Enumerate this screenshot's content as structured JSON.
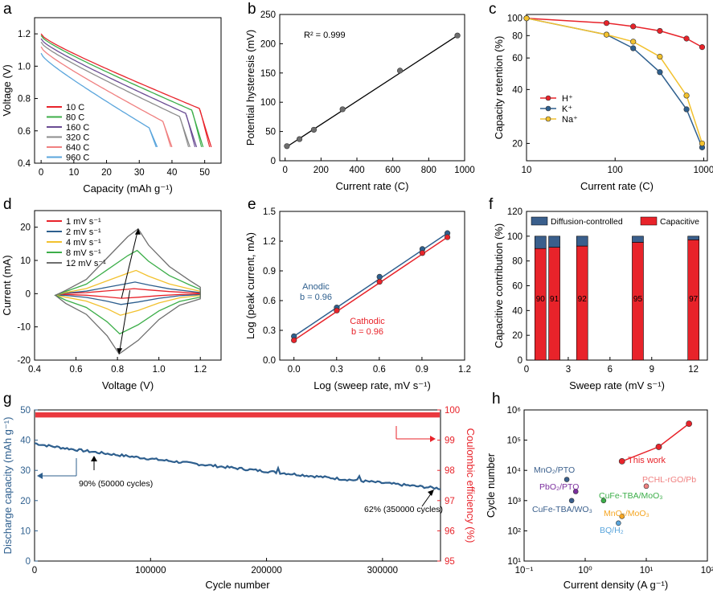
{
  "colors": {
    "red": "#e8232a",
    "blue": "#2e5f8e",
    "yellow": "#f2c12e",
    "green": "#3cae49",
    "purple": "#7b2f9e",
    "gray": "#6e6e6e",
    "lightblue": "#5aa5dc",
    "pink": "#e8646a",
    "orange": "#f5a623",
    "darkblue": "#3a5f8c",
    "lightpink": "#f08080"
  },
  "chart_data": [
    {
      "panel": "a",
      "type": "line",
      "xlabel": "Capacity (mAh g⁻¹)",
      "ylabel": "Voltage (V)",
      "xlim": [
        -2,
        55
      ],
      "ylim": [
        0.4,
        1.3
      ],
      "xticks": [
        0,
        10,
        20,
        30,
        40,
        50
      ],
      "yticks": [
        0.4,
        0.6,
        0.8,
        1.0,
        1.2
      ],
      "xtick_labels": [
        "0",
        "10",
        "20",
        "30",
        "40",
        "50"
      ],
      "ytick_labels": [
        "0.4",
        "0.6",
        "0.8",
        "1.0",
        "1.2"
      ],
      "series": [
        {
          "name": "10 C",
          "color": "#e8232a",
          "cap": 52,
          "top": 1.18
        },
        {
          "name": "80 C",
          "color": "#3cae49",
          "cap": 49.5,
          "top": 1.17
        },
        {
          "name": "160 C",
          "color": "#6a4c93",
          "cap": 47.5,
          "top": 1.15
        },
        {
          "name": "320 C",
          "color": "#8c8c8c",
          "cap": 45.5,
          "top": 1.13
        },
        {
          "name": "640 C",
          "color": "#f08080",
          "cap": 40,
          "top": 1.1
        },
        {
          "name": "960 C",
          "color": "#5aa5dc",
          "cap": 35.5,
          "top": 1.06
        }
      ]
    },
    {
      "panel": "b",
      "type": "scatter",
      "xlabel": "Current rate (C)",
      "ylabel": "Potential hysteresis (mV)",
      "annotation": "R² = 0.999",
      "xlim": [
        -30,
        1000
      ],
      "ylim": [
        0,
        250
      ],
      "xticks": [
        0,
        200,
        400,
        600,
        800,
        1000
      ],
      "yticks": [
        0,
        50,
        100,
        150,
        200,
        250
      ],
      "xtick_labels": [
        "0",
        "200",
        "400",
        "600",
        "800",
        "1000"
      ],
      "ytick_labels": [
        "0",
        "50",
        "100",
        "150",
        "200",
        "250"
      ],
      "x": [
        10,
        80,
        160,
        320,
        640,
        960
      ],
      "y": [
        25,
        37,
        53,
        88,
        154,
        214
      ]
    },
    {
      "panel": "c",
      "type": "line",
      "xlabel": "Current rate (C)",
      "ylabel": "Capacity retention (%)",
      "xscale": "log",
      "yscale": "log",
      "xlim": [
        10,
        1100
      ],
      "ylim": [
        16,
        105
      ],
      "xtick_labels": [
        "10",
        "100",
        "1000"
      ],
      "ytick_labels": [
        "20",
        "40",
        "60",
        "80",
        "100"
      ],
      "x": [
        10,
        80,
        160,
        320,
        640,
        960
      ],
      "series": [
        {
          "name": "H⁺",
          "color": "#e8232a",
          "values": [
            100,
            94,
            90,
            85,
            77,
            69
          ]
        },
        {
          "name": "K⁺",
          "color": "#2e5f8e",
          "values": [
            100,
            81,
            68,
            50,
            31,
            19
          ]
        },
        {
          "name": "Na⁺",
          "color": "#f2c12e",
          "values": [
            100,
            81,
            74,
            61,
            37,
            20
          ]
        }
      ]
    },
    {
      "panel": "d",
      "type": "line",
      "xlabel": "Voltage (V)",
      "ylabel": "Current (mA)",
      "xlim": [
        0.4,
        1.3
      ],
      "ylim": [
        -20,
        25
      ],
      "xtick_labels": [
        "0.4",
        "0.6",
        "0.8",
        "1.0",
        "1.2"
      ],
      "ytick_labels": [
        "-20",
        "-10",
        "0",
        "10",
        "20"
      ],
      "series": [
        {
          "name": "1 mV s⁻¹",
          "color": "#e8232a",
          "peak": 1.5
        },
        {
          "name": "2 mV s⁻¹",
          "color": "#2e5f8e",
          "peak": 3.5
        },
        {
          "name": "4 mV s⁻¹",
          "color": "#f2c12e",
          "peak": 7
        },
        {
          "name": "8 mV s⁻¹",
          "color": "#3cae49",
          "peak": 13
        },
        {
          "name": "12 mV s⁻¹",
          "color": "#6e6e6e",
          "peak": 19.5
        }
      ]
    },
    {
      "panel": "e",
      "type": "scatter",
      "xlabel": "Log (sweep rate, mV s⁻¹)",
      "ylabel": "Log (peak current, mA)",
      "xlim": [
        -0.1,
        1.2
      ],
      "ylim": [
        0.0,
        1.5
      ],
      "xtick_labels": [
        "0.0",
        "0.3",
        "0.6",
        "0.9",
        "1.2"
      ],
      "ytick_labels": [
        "0.0",
        "0.3",
        "0.6",
        "0.9",
        "1.2",
        "1.5"
      ],
      "x": [
        0,
        0.301,
        0.602,
        0.903,
        1.079
      ],
      "series": [
        {
          "name": "Anodic",
          "label": "Anodic",
          "b": "b = 0.96",
          "color": "#2e5f8e",
          "values": [
            0.24,
            0.53,
            0.84,
            1.12,
            1.28
          ]
        },
        {
          "name": "Cathodic",
          "label": "Cathodic",
          "b": "b = 0.96",
          "color": "#e8232a",
          "values": [
            0.2,
            0.5,
            0.79,
            1.08,
            1.24
          ]
        }
      ]
    },
    {
      "panel": "f",
      "type": "bar",
      "xlabel": "Sweep rate (mV s⁻¹)",
      "ylabel": "Capacitive contribution (%)",
      "xlim": [
        0,
        13
      ],
      "ylim": [
        0,
        120
      ],
      "xtick_labels": [
        "0",
        "3",
        "6",
        "9",
        "12"
      ],
      "ytick_labels": [
        "0",
        "20",
        "40",
        "60",
        "80",
        "100",
        "120"
      ],
      "categories": [
        1,
        2,
        4,
        8,
        12
      ],
      "capacitive": [
        90,
        91,
        92,
        95,
        97
      ],
      "value_labels": [
        "90",
        "91",
        "92",
        "95",
        "97"
      ],
      "legend": [
        "Diffusion-controlled",
        "Capacitive"
      ]
    },
    {
      "panel": "g",
      "type": "line",
      "xlabel": "Cycle number",
      "ylabel": "Discharge capacity (mAh g⁻¹)",
      "ylabel2": "Coulombic efficiency (%)",
      "xlim": [
        0,
        350000
      ],
      "ylim": [
        0,
        50
      ],
      "ylim2": [
        95,
        100
      ],
      "xtick_labels": [
        "0",
        "100000",
        "200000",
        "300000"
      ],
      "ytick_labels": [
        "0",
        "10",
        "20",
        "30",
        "40",
        "50"
      ],
      "ytick_labels2": [
        "95",
        "96",
        "97",
        "98",
        "99",
        "100"
      ],
      "capacity_start": 39,
      "capacity_end": 24,
      "annotations": [
        "90% (50000 cycles)",
        "62% (350000 cycles)"
      ]
    },
    {
      "panel": "h",
      "type": "scatter",
      "xlabel": "Current density (A g⁻¹)",
      "ylabel": "Cycle number",
      "xscale": "log",
      "yscale": "log",
      "xlim": [
        0.1,
        100
      ],
      "ylim": [
        10,
        1000000
      ],
      "xtick_labels": [
        "10⁻¹",
        "10⁰",
        "10¹",
        "10²"
      ],
      "ytick_labels": [
        "10¹",
        "10²",
        "10³",
        "10⁴",
        "10⁵",
        "10⁶"
      ],
      "this_work": {
        "label": "This work",
        "x": [
          4,
          16,
          50
        ],
        "y": [
          20000,
          60000,
          350000
        ]
      },
      "others": [
        {
          "label": "MnO₂/PTO",
          "x": 0.5,
          "y": 5000,
          "color": "#3a5f8c"
        },
        {
          "label": "PbO₂/PTO",
          "x": 0.7,
          "y": 2000,
          "color": "#7b2f9e"
        },
        {
          "label": "CuFe-TBA/WO₃",
          "x": 0.6,
          "y": 1000,
          "color": "#3a5f8c"
        },
        {
          "label": "CuFe-TBA/MoO₃",
          "x": 2,
          "y": 1000,
          "color": "#3cae49"
        },
        {
          "label": "PCHL-rGO/Pb",
          "x": 10,
          "y": 3000,
          "color": "#f08080"
        },
        {
          "label": "MnO₂/MoO₃",
          "x": 4,
          "y": 300,
          "color": "#f5a623"
        },
        {
          "label": "BQ/H₂",
          "x": 3.5,
          "y": 180,
          "color": "#5aa5dc"
        }
      ]
    }
  ]
}
